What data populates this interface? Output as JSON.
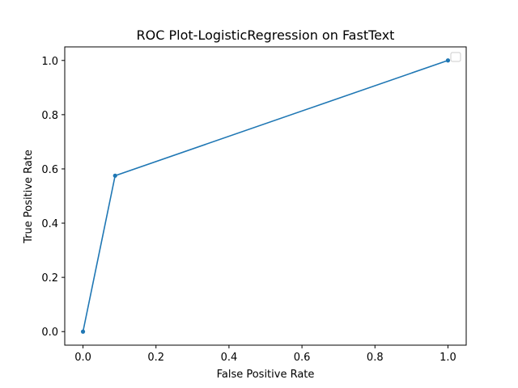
{
  "chart_data": {
    "type": "line",
    "title": "ROC Plot-LogisticRegression on FastText",
    "xlabel": "False Positive Rate",
    "ylabel": "True Positive Rate",
    "xlim": [
      -0.05,
      1.05
    ],
    "ylim": [
      -0.05,
      1.05
    ],
    "x_ticks": [
      "0.0",
      "0.2",
      "0.4",
      "0.6",
      "0.8",
      "1.0"
    ],
    "y_ticks": [
      "0.0",
      "0.2",
      "0.4",
      "0.6",
      "0.8",
      "1.0"
    ],
    "series": [
      {
        "x": [
          0.0,
          0.088,
          1.0
        ],
        "y": [
          0.0,
          0.575,
          1.0
        ],
        "color": "#1f77b4",
        "marker": "circle"
      }
    ],
    "grid": false,
    "legend": {
      "placement": "top-right",
      "entries": []
    }
  }
}
